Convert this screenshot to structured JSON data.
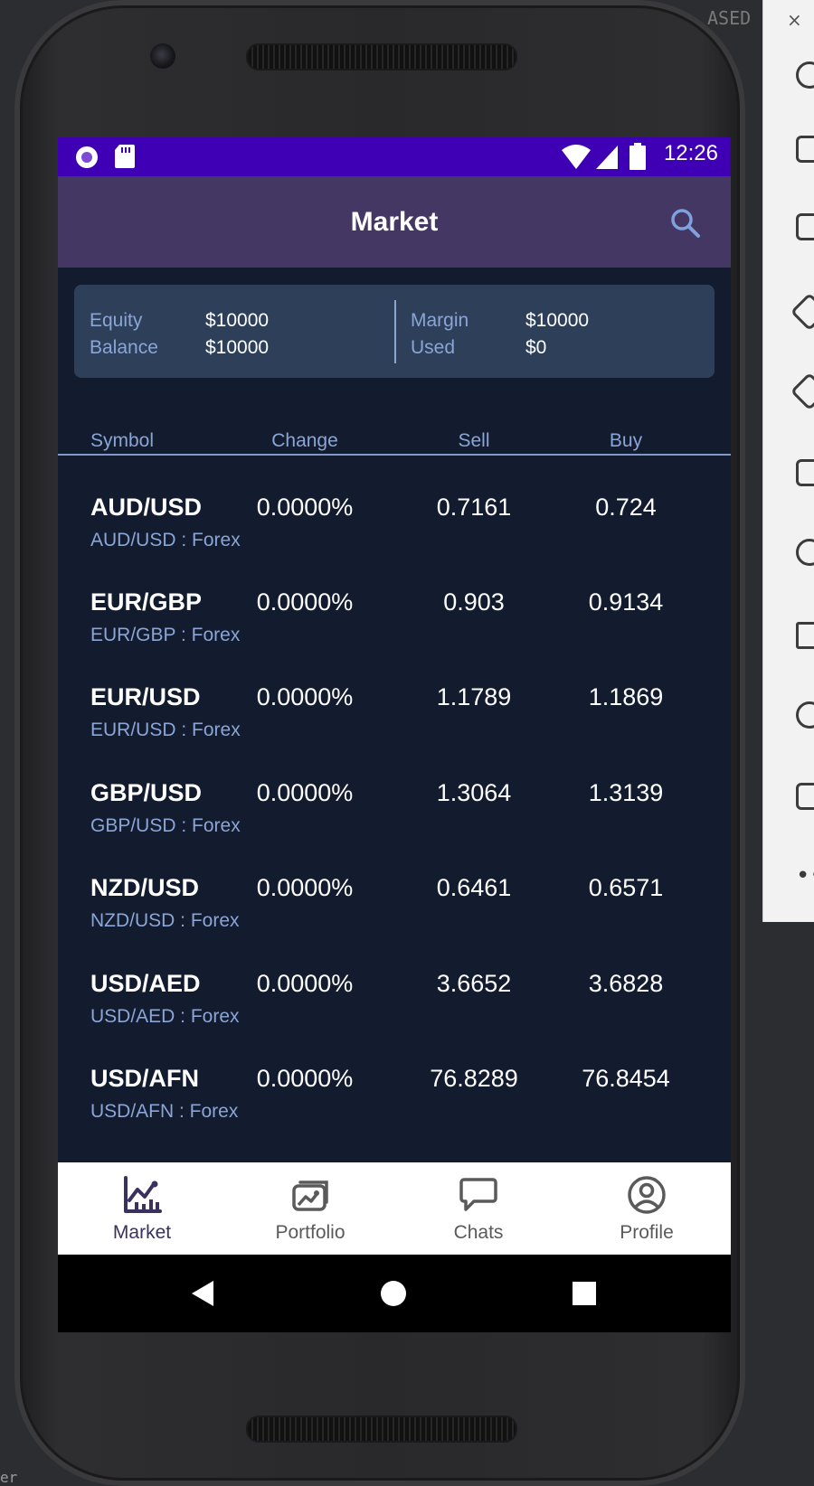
{
  "ide": {
    "close_glyph": "×",
    "top_text": "ASED !",
    "bottom_text": "er"
  },
  "status_bar": {
    "time": "12:26"
  },
  "header": {
    "title": "Market"
  },
  "summary": {
    "equity_label": "Equity",
    "equity_value": "$10000",
    "balance_label": "Balance",
    "balance_value": "$10000",
    "margin_label": "Margin",
    "margin_value": "$10000",
    "used_label": "Used",
    "used_value": "$0"
  },
  "table": {
    "columns": [
      "Symbol",
      "Change",
      "Sell",
      "Buy"
    ],
    "rows": [
      {
        "symbol": "AUD/USD",
        "sub": "AUD/USD : Forex",
        "change": "0.0000%",
        "sell": "0.7161",
        "buy": "0.724"
      },
      {
        "symbol": "EUR/GBP",
        "sub": "EUR/GBP : Forex",
        "change": "0.0000%",
        "sell": "0.903",
        "buy": "0.9134"
      },
      {
        "symbol": "EUR/USD",
        "sub": "EUR/USD : Forex",
        "change": "0.0000%",
        "sell": "1.1789",
        "buy": "1.1869"
      },
      {
        "symbol": "GBP/USD",
        "sub": "GBP/USD : Forex",
        "change": "0.0000%",
        "sell": "1.3064",
        "buy": "1.3139"
      },
      {
        "symbol": "NZD/USD",
        "sub": "NZD/USD : Forex",
        "change": "0.0000%",
        "sell": "0.6461",
        "buy": "0.6571"
      },
      {
        "symbol": "USD/AED",
        "sub": "USD/AED : Forex",
        "change": "0.0000%",
        "sell": "3.6652",
        "buy": "3.6828"
      },
      {
        "symbol": "USD/AFN",
        "sub": "USD/AFN : Forex",
        "change": "0.0000%",
        "sell": "76.8289",
        "buy": "76.8454"
      }
    ]
  },
  "bottom_nav": {
    "items": [
      {
        "label": "Market",
        "icon": "chart-icon",
        "active": true
      },
      {
        "label": "Portfolio",
        "icon": "portfolio-icon",
        "active": false
      },
      {
        "label": "Chats",
        "icon": "chat-bubble-icon",
        "active": false
      },
      {
        "label": "Profile",
        "icon": "profile-icon",
        "active": false
      }
    ]
  },
  "colors": {
    "status_bar": "#3f00b5",
    "top_bar": "#443764",
    "background": "#131b2e",
    "card": "#2e3f5a",
    "muted_text": "#8aa5d6",
    "nav_active": "#3b3160",
    "nav_inactive": "#5a5a5a"
  }
}
